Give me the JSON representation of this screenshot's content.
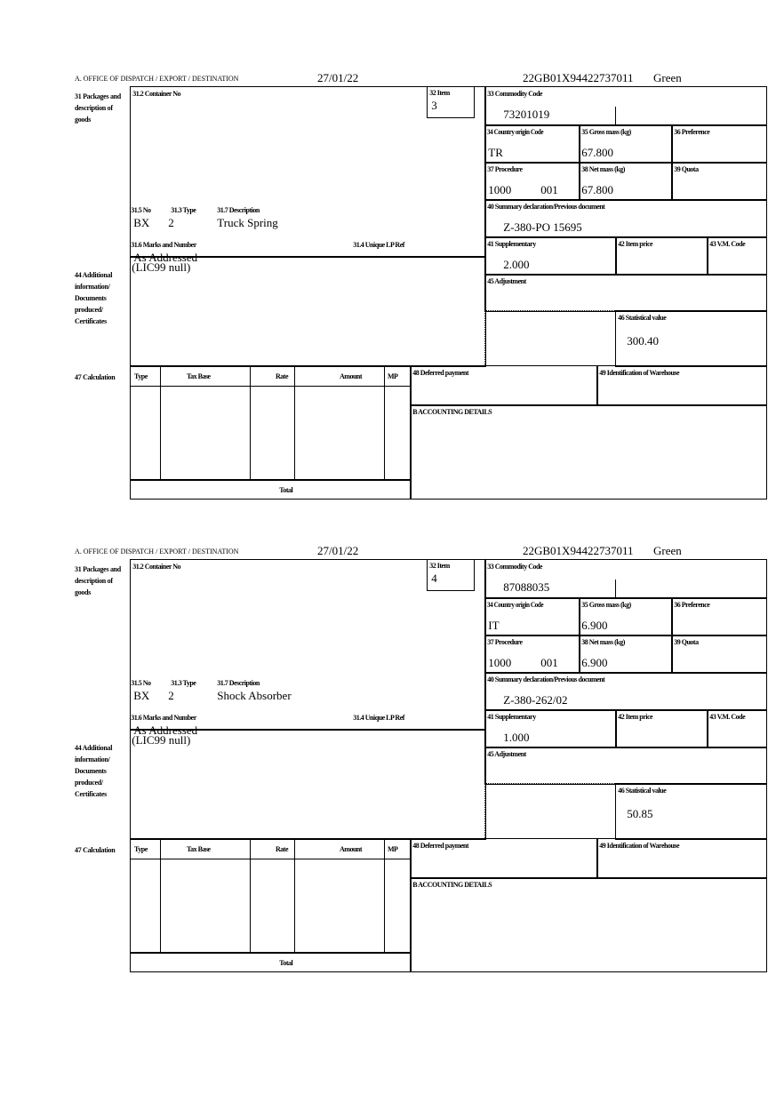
{
  "forms": [
    {
      "header": {
        "office": "A. OFFICE OF DISPATCH / EXPORT / DESTINATION",
        "date": "27/01/22",
        "reference": "22GB01X94422737011",
        "route": "Green"
      },
      "side_labels": {
        "packages": "31 Packages and description of goods",
        "additional": "44 Additional information/ Documents produced/ Certificates",
        "calculation": "47 Calculation"
      },
      "labels": {
        "container": "31.2 Container No",
        "item": "32 Item",
        "no": "31.5 No",
        "type": "31.3 Type",
        "description": "31.7 Description",
        "marks": "31.6 Marks and Number",
        "unique": "31.4 Unique LP Ref",
        "commodity": "33 Commodity Code",
        "origin": "34 Country origin Code",
        "gross": "35 Gross mass (kg)",
        "preference": "36 Preference",
        "procedure": "37 Procedure",
        "net": "38 Net mass (kg)",
        "quota": "39 Quota",
        "summary": "40 Summary declaration/Previous document",
        "supplementary": "41 Supplementary",
        "item_price": "42 Item price",
        "vm_code": "43 V.M. Code",
        "adjustment": "45 Adjustment",
        "statistical": "46 Statistical value",
        "deferred": "48 Deferred payment",
        "warehouse": "49 Identification of Warehouse",
        "accounting": "B ACCOUNTING DETAILS",
        "calc_type": "Type",
        "calc_tax_base": "Tax Base",
        "calc_rate": "Rate",
        "calc_amount": "Amount",
        "calc_mp": "MP",
        "total": "Total"
      },
      "values": {
        "item": "3",
        "no": "BX",
        "type": "2",
        "description": "Truck Spring",
        "marks": "As Addressed",
        "additional": "(LIC99 null)",
        "commodity": "73201019",
        "origin": "TR",
        "gross": "67.800",
        "procedure": "1000",
        "procedure_extra": "001",
        "net": "67.800",
        "summary": "Z-380-PO 15695",
        "supplementary": "2.000",
        "statistical": "300.40"
      }
    },
    {
      "header": {
        "office": "A. OFFICE OF DISPATCH / EXPORT / DESTINATION",
        "date": "27/01/22",
        "reference": "22GB01X94422737011",
        "route": "Green"
      },
      "side_labels": {
        "packages": "31 Packages and description of goods",
        "additional": "44 Additional information/ Documents produced/ Certificates",
        "calculation": "47 Calculation"
      },
      "labels": {
        "container": "31.2 Container No",
        "item": "32 Item",
        "no": "31.5 No",
        "type": "31.3 Type",
        "description": "31.7 Description",
        "marks": "31.6 Marks and Number",
        "unique": "31.4 Unique LP Ref",
        "commodity": "33 Commodity Code",
        "origin": "34 Country origin Code",
        "gross": "35 Gross mass (kg)",
        "preference": "36 Preference",
        "procedure": "37 Procedure",
        "net": "38 Net mass (kg)",
        "quota": "39 Quota",
        "summary": "40 Summary declaration/Previous document",
        "supplementary": "41 Supplementary",
        "item_price": "42 Item price",
        "vm_code": "43 V.M. Code",
        "adjustment": "45 Adjustment",
        "statistical": "46 Statistical value",
        "deferred": "48 Deferred payment",
        "warehouse": "49 Identification of Warehouse",
        "accounting": "B ACCOUNTING DETAILS",
        "calc_type": "Type",
        "calc_tax_base": "Tax Base",
        "calc_rate": "Rate",
        "calc_amount": "Amount",
        "calc_mp": "MP",
        "total": "Total"
      },
      "values": {
        "item": "4",
        "no": "BX",
        "type": "2",
        "description": "Shock Absorber",
        "marks": "As Addressed",
        "additional": "(LIC99 null)",
        "commodity": "87088035",
        "origin": "IT",
        "gross": "6.900",
        "procedure": "1000",
        "procedure_extra": "001",
        "net": "6.900",
        "summary": "Z-380-262/02",
        "supplementary": "1.000",
        "statistical": "50.85"
      }
    }
  ]
}
